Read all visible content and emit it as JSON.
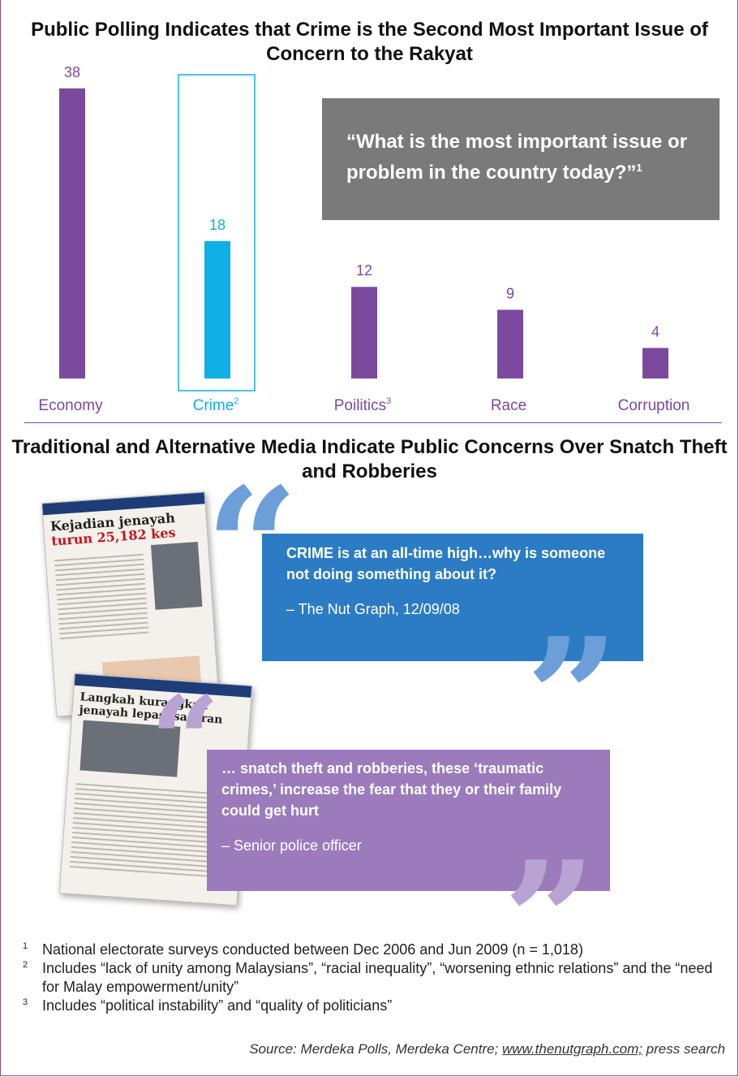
{
  "top_title": "Public Polling Indicates that Crime is the Second Most Important Issue of Concern to the Rakyat",
  "question": {
    "text": "“What is the most important issue or problem in the country today?”",
    "footnote_ref": "1"
  },
  "chart_data": {
    "type": "bar",
    "categories": [
      "Economy",
      "Crime",
      "Poilitics",
      "Race",
      "Corruption"
    ],
    "category_footnotes": [
      "",
      "2",
      "3",
      "",
      ""
    ],
    "values": [
      38,
      18,
      12,
      9,
      4
    ],
    "highlight": "Crime",
    "colors": {
      "default": "#7b4a9e",
      "highlight": "#0eb0e6"
    }
  },
  "section2_title": "Traditional and Alternative Media Indicate Public Concerns Over Snatch Theft and Robberies",
  "clippings": [
    {
      "headline_1": "Kejadian jenayah",
      "headline_2": "turun 25,182 kes"
    },
    {
      "headline_1": "Langkah kurangkan",
      "headline_2": "jenayah lepasi sasaran"
    }
  ],
  "quotes": [
    {
      "text": "CRIME is at an all-time high…why is someone not doing something about it?",
      "attribution": "– The Nut Graph, 12/09/08",
      "color": "#2b7cc4"
    },
    {
      "text": "… snatch theft and robberies, these ‘traumatic crimes,’ increase the fear that they or their family could get hurt",
      "attribution": "– Senior police officer",
      "color": "#9b7bbb"
    }
  ],
  "footnotes": [
    {
      "num": "1",
      "text": "National electorate surveys conducted between Dec 2006 and Jun 2009 (n = 1,018)"
    },
    {
      "num": "2",
      "text": "Includes “lack of unity among Malaysians”, “racial inequality”, “worsening ethnic relations” and the “need for Malay empowerment/unity”"
    },
    {
      "num": "3",
      "text": "Includes “political instability” and “quality of politicians”"
    }
  ],
  "source": {
    "prefix": "Source: Merdeka Polls, Merdeka Centre; ",
    "link": "www.thenutgraph.com;",
    "suffix": " press search"
  }
}
